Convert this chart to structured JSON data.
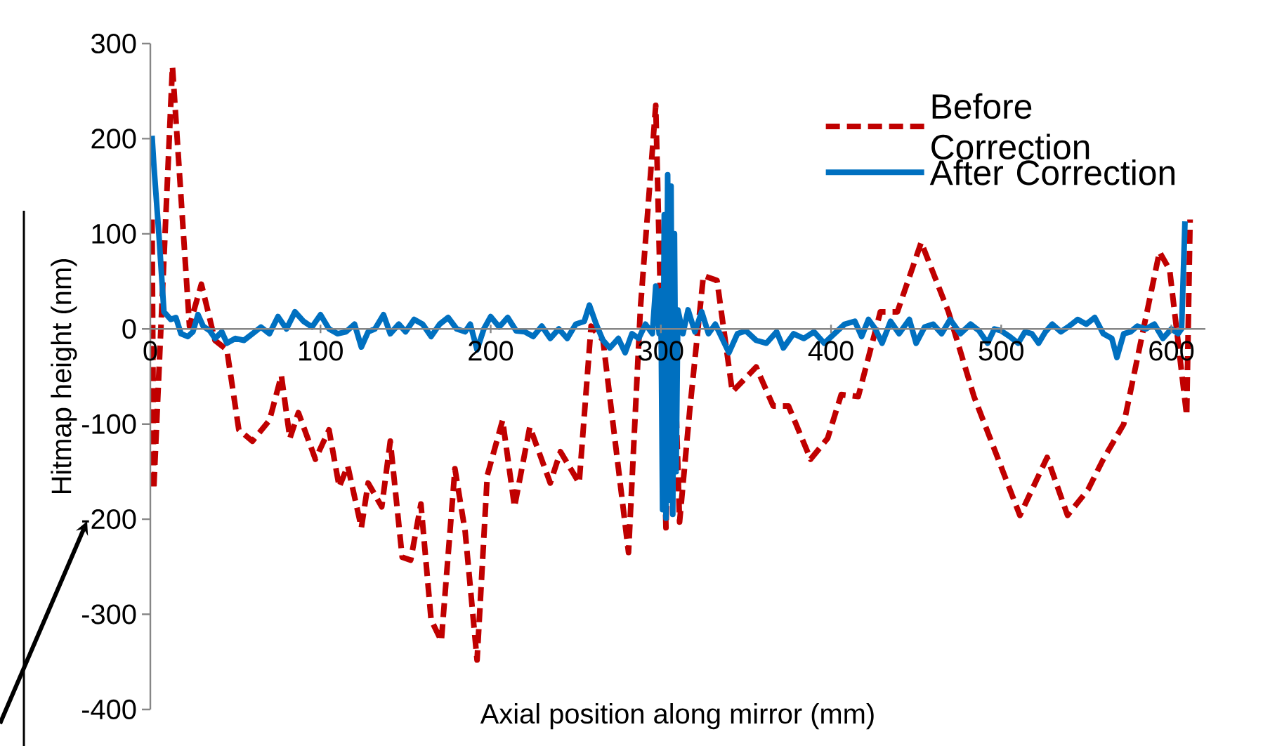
{
  "chart_data": {
    "type": "line",
    "xlabel": "Axial position along mirror (mm)",
    "ylabel": "Hitmap height (nm)",
    "xlim": [
      0,
      620
    ],
    "ylim": [
      -400,
      300
    ],
    "xticks": [
      0,
      100,
      200,
      300,
      400,
      500,
      600
    ],
    "yticks": [
      -400,
      -300,
      -200,
      -100,
      0,
      100,
      200,
      300
    ],
    "grid": false,
    "legend": "top right",
    "marker": "none",
    "series": [
      {
        "name": "Before Correction",
        "color": "#c00000",
        "line_style": "dashed",
        "x": [
          1,
          2,
          13,
          23,
          30,
          38,
          45,
          52,
          60,
          70,
          77,
          82,
          87,
          97,
          105,
          111,
          116,
          124,
          128,
          136,
          141,
          148,
          153,
          159,
          165,
          171,
          179,
          185,
          192,
          198,
          207,
          214,
          223,
          235,
          241,
          252,
          259,
          266,
          281,
          288,
          297,
          303,
          307,
          311,
          317,
          325,
          333,
          342,
          356,
          366,
          375,
          388,
          398,
          406,
          416,
          429,
          439,
          453,
          469,
          484,
          511,
          527,
          539,
          551,
          560,
          572,
          593,
          599,
          609,
          611
        ],
        "values": [
          115,
          -169,
          276,
          3,
          47,
          -12,
          -22,
          -106,
          -118,
          -96,
          -49,
          -115,
          -88,
          -137,
          -106,
          -166,
          -144,
          -209,
          -162,
          -187,
          -118,
          -240,
          -243,
          -184,
          -306,
          -328,
          -147,
          -213,
          -348,
          -154,
          -96,
          -187,
          -103,
          -162,
          -129,
          -162,
          3,
          -12,
          -235,
          22,
          235,
          -209,
          32,
          -203,
          -85,
          56,
          51,
          -66,
          -40,
          -81,
          -81,
          -137,
          -115,
          -69,
          -71,
          18,
          18,
          91,
          18,
          -71,
          -196,
          -135,
          -196,
          -169,
          -137,
          -100,
          81,
          62,
          -91,
          115
        ]
      },
      {
        "name": "After Correction",
        "color": "#0070c0",
        "line_style": "solid",
        "x": [
          1,
          2,
          5,
          8,
          12,
          15,
          18,
          22,
          25,
          28,
          31,
          35,
          38,
          42,
          45,
          50,
          55,
          60,
          65,
          70,
          75,
          80,
          85,
          90,
          95,
          100,
          105,
          110,
          115,
          120,
          124,
          128,
          132,
          137,
          141,
          146,
          150,
          155,
          160,
          165,
          170,
          175,
          180,
          185,
          188,
          192,
          196,
          200,
          205,
          210,
          215,
          220,
          225,
          230,
          235,
          240,
          245,
          250,
          255,
          258,
          262,
          266,
          270,
          275,
          279,
          283,
          287,
          291,
          295,
          297,
          299,
          300,
          301,
          302,
          303,
          304,
          305,
          306,
          307,
          308,
          309,
          310,
          313,
          316,
          320,
          324,
          328,
          332,
          336,
          340,
          345,
          350,
          356,
          362,
          368,
          372,
          378,
          384,
          390,
          396,
          402,
          408,
          414,
          418,
          422,
          426,
          430,
          435,
          440,
          446,
          450,
          455,
          460,
          465,
          470,
          476,
          482,
          487,
          492,
          496,
          500,
          505,
          510,
          514,
          518,
          522,
          526,
          530,
          535,
          540,
          545,
          550,
          555,
          560,
          565,
          568,
          572,
          576,
          580,
          585,
          590,
          595,
          600,
          604,
          606,
          608
        ],
        "values": [
          203,
          174,
          100,
          18,
          10,
          12,
          -5,
          -8,
          -3,
          15,
          3,
          -2,
          -10,
          -3,
          -15,
          -10,
          -12,
          -5,
          2,
          -5,
          13,
          0,
          18,
          8,
          2,
          15,
          0,
          -5,
          -3,
          5,
          -19,
          -3,
          0,
          15,
          -5,
          5,
          -3,
          10,
          5,
          -8,
          5,
          12,
          0,
          -3,
          5,
          -22,
          0,
          13,
          2,
          12,
          -2,
          -3,
          -8,
          3,
          -10,
          0,
          -10,
          5,
          8,
          25,
          5,
          -12,
          -20,
          -10,
          -25,
          -5,
          -10,
          5,
          -5,
          45,
          -5,
          40,
          -190,
          120,
          -199,
          162,
          -180,
          150,
          -195,
          100,
          -150,
          20,
          -5,
          20,
          -3,
          18,
          -5,
          5,
          -10,
          -25,
          -5,
          -2,
          -12,
          -15,
          -3,
          -20,
          -5,
          -10,
          -3,
          -15,
          -5,
          5,
          8,
          -8,
          10,
          0,
          -15,
          8,
          -5,
          10,
          -15,
          2,
          5,
          -5,
          10,
          -5,
          5,
          -2,
          -15,
          0,
          -2,
          -8,
          -15,
          -3,
          -5,
          -15,
          -3,
          5,
          -3,
          3,
          10,
          5,
          12,
          -5,
          -10,
          -30,
          -5,
          -3,
          3,
          0,
          5,
          -10,
          0,
          -5,
          0,
          113
        ]
      }
    ]
  }
}
